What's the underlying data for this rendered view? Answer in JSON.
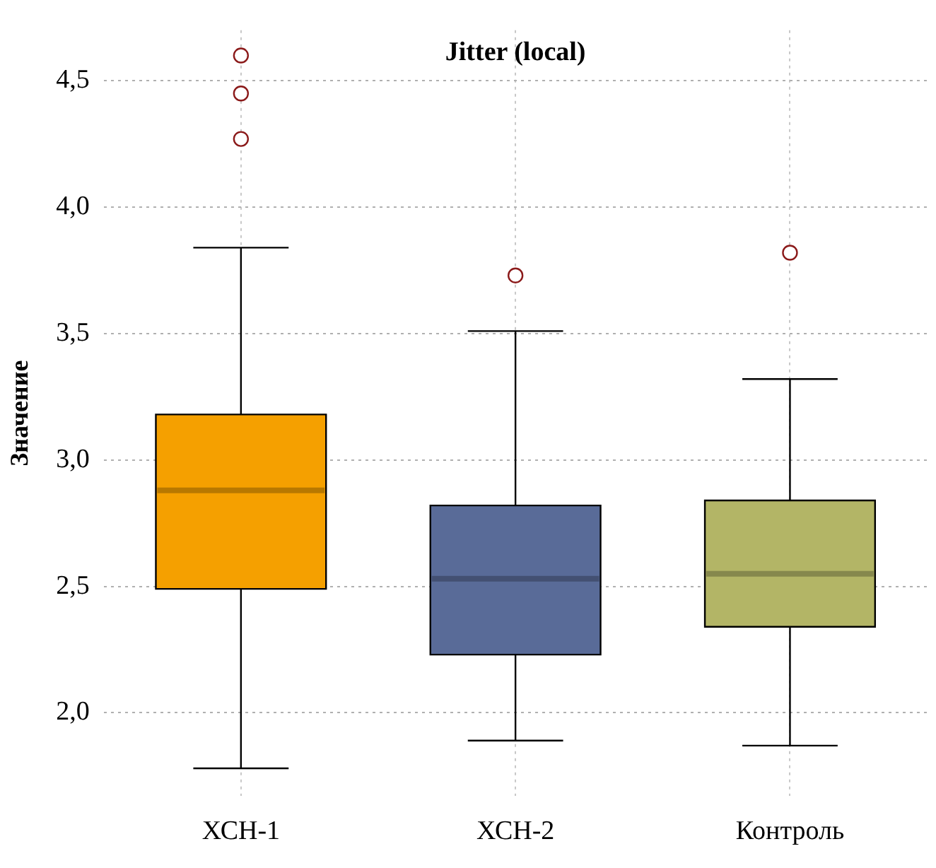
{
  "chart_data": {
    "type": "box",
    "title": "Jitter (local)",
    "ylabel": "Значение",
    "categories": [
      "ХСН-1",
      "ХСН-2",
      "Контроль"
    ],
    "colors": [
      "#f5a000",
      "#596b98",
      "#b3b566"
    ],
    "boxes": [
      {
        "low": 1.78,
        "q1": 2.49,
        "median": 2.88,
        "q3": 3.18,
        "high": 3.84,
        "outliers": [
          4.6,
          4.45,
          4.27
        ]
      },
      {
        "low": 1.89,
        "q1": 2.23,
        "median": 2.53,
        "q3": 2.82,
        "high": 3.51,
        "outliers": [
          3.73
        ]
      },
      {
        "low": 1.87,
        "q1": 2.34,
        "median": 2.55,
        "q3": 2.84,
        "high": 3.32,
        "outliers": [
          3.82
        ]
      }
    ],
    "ylim": [
      1.67,
      4.7
    ],
    "yticks": [
      {
        "value": 2.0,
        "label": "2,0"
      },
      {
        "value": 2.5,
        "label": "2,5"
      },
      {
        "value": 3.0,
        "label": "3,0"
      },
      {
        "value": 3.5,
        "label": "3,5"
      },
      {
        "value": 4.0,
        "label": "4,0"
      },
      {
        "value": 4.5,
        "label": "4,5"
      }
    ],
    "grid": true,
    "legend": false
  }
}
